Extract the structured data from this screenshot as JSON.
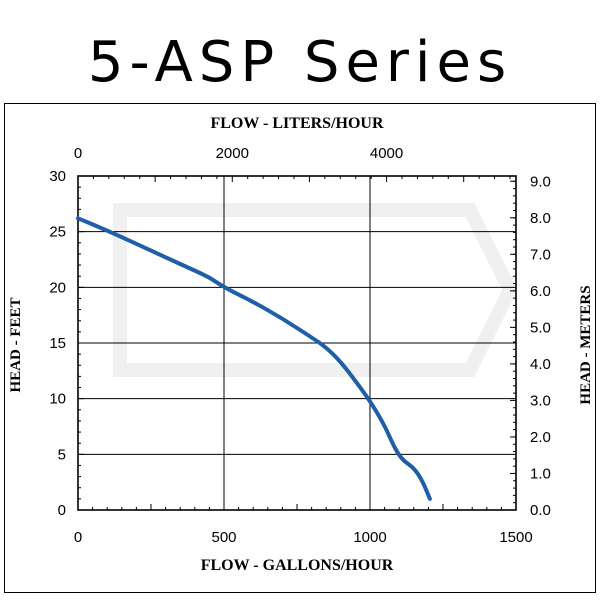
{
  "page": {
    "title": "5-ASP Series"
  },
  "chart_data": {
    "type": "line",
    "title": "",
    "xlabel": "FLOW - GALLONS/HOUR",
    "x2label": "FLOW - LITERS/HOUR",
    "ylabel": "HEAD - FEET",
    "y2label": "HEAD - METERS",
    "xlim": [
      0,
      1500
    ],
    "ylim": [
      0,
      30
    ],
    "x2lim": [
      0,
      5678
    ],
    "y2lim": [
      0,
      9.144
    ],
    "x_ticks": [
      "0",
      "500",
      "1000",
      "1500"
    ],
    "y_ticks": [
      "0",
      "5",
      "10",
      "15",
      "20",
      "25",
      "30"
    ],
    "x2_ticks": [
      {
        "label": "0",
        "value": 0
      },
      {
        "label": "2000",
        "value": 2000
      },
      {
        "label": "4000",
        "value": 4000
      }
    ],
    "y2_ticks": [
      {
        "label": "0.0",
        "value": 0.0
      },
      {
        "label": "1.0",
        "value": 1.0
      },
      {
        "label": "2.0",
        "value": 2.0
      },
      {
        "label": "3.0",
        "value": 3.0
      },
      {
        "label": "4.0",
        "value": 4.0
      },
      {
        "label": "5.0",
        "value": 5.0
      },
      {
        "label": "6.0",
        "value": 6.0
      },
      {
        "label": "7.0",
        "value": 7.0
      },
      {
        "label": "8.0",
        "value": 8.0
      },
      {
        "label": "9.0",
        "value": 9.0
      }
    ],
    "grid": true,
    "series": [
      {
        "color": "#1f5fa8",
        "x": [
          0,
          100,
          200,
          300,
          400,
          450,
          500,
          600,
          700,
          800,
          850,
          900,
          950,
          1000,
          1050,
          1080,
          1110,
          1150,
          1180,
          1205
        ],
        "y": [
          26.2,
          25.1,
          23.9,
          22.7,
          21.5,
          20.9,
          20.0,
          18.7,
          17.2,
          15.5,
          14.6,
          13.3,
          11.6,
          9.8,
          7.6,
          5.8,
          4.5,
          3.8,
          2.6,
          1.0
        ]
      }
    ]
  }
}
